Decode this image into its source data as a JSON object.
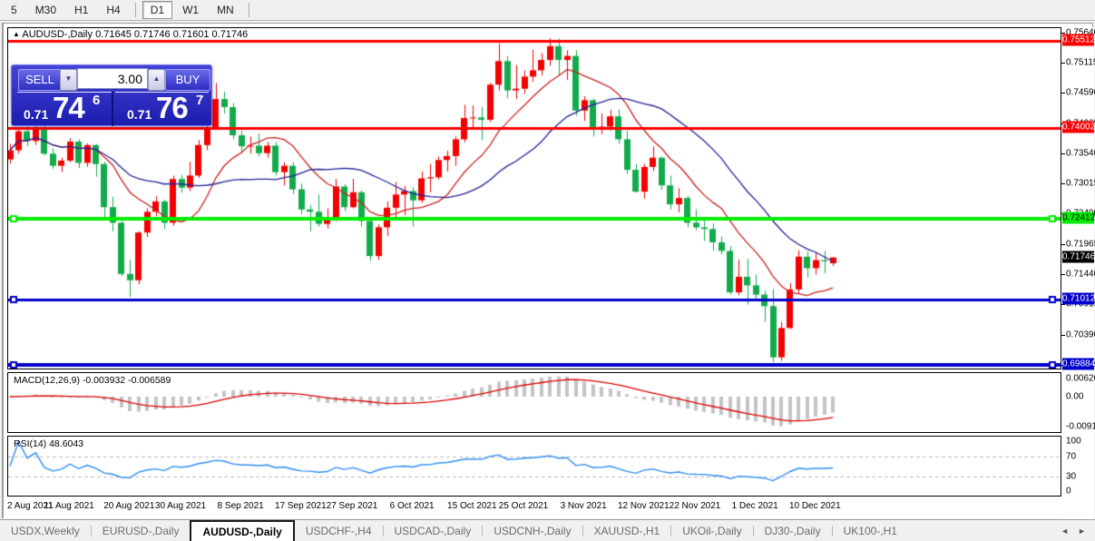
{
  "toolbar": {
    "timeframes": [
      {
        "label": "5"
      },
      {
        "label": "M30"
      },
      {
        "label": "H1"
      },
      {
        "label": "H4"
      },
      {
        "sep": true
      },
      {
        "label": "D1",
        "active": true
      },
      {
        "label": "W1"
      },
      {
        "label": "MN"
      },
      {
        "sep": true
      }
    ]
  },
  "chart": {
    "collapse_icon": "▲",
    "title_symbol": "AUDUSD-,Daily",
    "title_ohlc": "0.71645 0.71746 0.71601 0.71746"
  },
  "trade_panel": {
    "sell_label": "SELL",
    "buy_label": "BUY",
    "volume": "3.00",
    "spinner_down_icon": "▼",
    "spinner_up_icon": "▲",
    "sell_price": {
      "small": "0.71",
      "big": "74",
      "sup": "6"
    },
    "buy_price": {
      "small": "0.71",
      "big": "76",
      "sup": "7"
    }
  },
  "price_axis": {
    "ticks": [
      "0.75640",
      "0.75115",
      "0.74590",
      "0.74065",
      "0.73540",
      "0.73015",
      "0.72490",
      "0.71965",
      "0.71440",
      "0.70915",
      "0.70390",
      "0.69865"
    ],
    "range_top": 0.75733,
    "range_bottom": 0.69815
  },
  "levels": [
    {
      "price": 0.75512,
      "label": "0.75512",
      "color": "#FF0000",
      "text_color": "#FFFFFF",
      "width": 3,
      "handles": false
    },
    {
      "price": 0.74002,
      "label": "0.74002",
      "color": "#FF0000",
      "text_color": "#FFFFFF",
      "width": 3,
      "handles": false
    },
    {
      "price": 0.72412,
      "label": "0.72412",
      "color": "#00EE00",
      "text_color": "#000000",
      "width": 4,
      "handles": true
    },
    {
      "price": 0.71012,
      "label": "0.71012",
      "color": "#0000CC",
      "text_color": "#FFFFFF",
      "width": 3,
      "handles": true
    },
    {
      "price": 0.69884,
      "label": "0.69884",
      "color": "#0000CC",
      "text_color": "#FFFFFF",
      "width": 4,
      "handles": true
    }
  ],
  "current_price": {
    "value": 0.71746,
    "label": "0.71746",
    "bg": "#000000",
    "text_color": "#FFFFFF"
  },
  "macd": {
    "label": "MACD(12,26,9) -0.003932 -0.006589",
    "fast": 12,
    "slow": 26,
    "signal": 9,
    "axis": [
      "0.006201",
      "0.00",
      "-0.00919"
    ],
    "axis_values": [
      0.006201,
      0,
      -0.00919
    ],
    "range_top": 0.0068,
    "range_bottom": -0.0102,
    "bar_color": "#c4c4c4",
    "signal_color": "#e00000"
  },
  "rsi": {
    "label": "RSI(14) 48.6043",
    "period": 14,
    "axis": [
      "100",
      "70",
      "30",
      "0"
    ],
    "axis_values": [
      100,
      70,
      30,
      0
    ],
    "level_lines": [
      70,
      30
    ],
    "line_color": "#2f8df5",
    "grid_color": "#bbbbbb"
  },
  "chart_data": {
    "type": "candlestick",
    "symbol": "AUDUSD-",
    "timeframe": "Daily",
    "bull_color": "#f40000",
    "bear_color": "#12ab4b",
    "ma_fast": {
      "period": 10,
      "color": "#cc2222"
    },
    "ma_slow": {
      "period": 21,
      "color": "#22229c"
    },
    "ohlc": [
      [
        0.7345,
        0.7372,
        0.7338,
        0.7361
      ],
      [
        0.7361,
        0.7399,
        0.7355,
        0.7394
      ],
      [
        0.7394,
        0.7403,
        0.7368,
        0.7377
      ],
      [
        0.7377,
        0.7405,
        0.737,
        0.74
      ],
      [
        0.74,
        0.7406,
        0.7352,
        0.7355
      ],
      [
        0.7355,
        0.7364,
        0.7329,
        0.7334
      ],
      [
        0.7334,
        0.7348,
        0.7323,
        0.7343
      ],
      [
        0.7343,
        0.7382,
        0.734,
        0.7376
      ],
      [
        0.7376,
        0.738,
        0.733,
        0.7339
      ],
      [
        0.7339,
        0.7373,
        0.7332,
        0.737
      ],
      [
        0.737,
        0.7372,
        0.7315,
        0.7337
      ],
      [
        0.7337,
        0.7341,
        0.724,
        0.7262
      ],
      [
        0.7262,
        0.728,
        0.722,
        0.7235
      ],
      [
        0.7235,
        0.7238,
        0.7142,
        0.7146
      ],
      [
        0.7146,
        0.717,
        0.7106,
        0.7135
      ],
      [
        0.7135,
        0.722,
        0.7128,
        0.7218
      ],
      [
        0.7218,
        0.726,
        0.721,
        0.7254
      ],
      [
        0.7254,
        0.7281,
        0.7246,
        0.7272
      ],
      [
        0.7272,
        0.7275,
        0.7224,
        0.7235
      ],
      [
        0.7235,
        0.7317,
        0.723,
        0.7311
      ],
      [
        0.7311,
        0.7318,
        0.7287,
        0.7296
      ],
      [
        0.7296,
        0.7341,
        0.729,
        0.7317
      ],
      [
        0.7317,
        0.7379,
        0.7313,
        0.737
      ],
      [
        0.737,
        0.7408,
        0.7361,
        0.7401
      ],
      [
        0.7401,
        0.7478,
        0.7396,
        0.745
      ],
      [
        0.745,
        0.7463,
        0.7425,
        0.7436
      ],
      [
        0.7436,
        0.7443,
        0.738,
        0.7387
      ],
      [
        0.7387,
        0.7395,
        0.7355,
        0.7368
      ],
      [
        0.7368,
        0.7385,
        0.7355,
        0.7369
      ],
      [
        0.7369,
        0.739,
        0.735,
        0.7356
      ],
      [
        0.7356,
        0.7375,
        0.7348,
        0.7369
      ],
      [
        0.7369,
        0.7375,
        0.7318,
        0.7323
      ],
      [
        0.7323,
        0.734,
        0.73,
        0.7334
      ],
      [
        0.7334,
        0.734,
        0.7285,
        0.7293
      ],
      [
        0.7293,
        0.7303,
        0.725,
        0.7258
      ],
      [
        0.7258,
        0.7266,
        0.722,
        0.7254
      ],
      [
        0.7254,
        0.7284,
        0.7228,
        0.7233
      ],
      [
        0.7233,
        0.726,
        0.7225,
        0.7241
      ],
      [
        0.7241,
        0.7311,
        0.7238,
        0.7298
      ],
      [
        0.7298,
        0.7302,
        0.7255,
        0.7262
      ],
      [
        0.7262,
        0.7311,
        0.726,
        0.7288
      ],
      [
        0.7288,
        0.7291,
        0.7228,
        0.7238
      ],
      [
        0.7238,
        0.7242,
        0.7169,
        0.7177
      ],
      [
        0.7177,
        0.7232,
        0.717,
        0.7227
      ],
      [
        0.7227,
        0.7272,
        0.7212,
        0.7261
      ],
      [
        0.7261,
        0.7306,
        0.724,
        0.7284
      ],
      [
        0.7284,
        0.7299,
        0.7248,
        0.729
      ],
      [
        0.729,
        0.7296,
        0.7228,
        0.7274
      ],
      [
        0.7274,
        0.7324,
        0.727,
        0.7312
      ],
      [
        0.7312,
        0.7337,
        0.7288,
        0.7314
      ],
      [
        0.7314,
        0.735,
        0.731,
        0.7344
      ],
      [
        0.7344,
        0.736,
        0.7324,
        0.7351
      ],
      [
        0.7351,
        0.7385,
        0.7334,
        0.738
      ],
      [
        0.738,
        0.744,
        0.7375,
        0.7417
      ],
      [
        0.7417,
        0.7439,
        0.74,
        0.7418
      ],
      [
        0.7418,
        0.7436,
        0.7379,
        0.7414
      ],
      [
        0.7414,
        0.7478,
        0.741,
        0.7475
      ],
      [
        0.7475,
        0.7547,
        0.7465,
        0.7516
      ],
      [
        0.7516,
        0.7525,
        0.7452,
        0.7465
      ],
      [
        0.7465,
        0.7509,
        0.745,
        0.7468
      ],
      [
        0.7468,
        0.75,
        0.7459,
        0.7489
      ],
      [
        0.7489,
        0.7536,
        0.748,
        0.75
      ],
      [
        0.75,
        0.753,
        0.7491,
        0.7518
      ],
      [
        0.7518,
        0.7556,
        0.7508,
        0.7542
      ],
      [
        0.7542,
        0.7555,
        0.749,
        0.7518
      ],
      [
        0.7518,
        0.7535,
        0.7483,
        0.7525
      ],
      [
        0.7525,
        0.7535,
        0.7421,
        0.743
      ],
      [
        0.743,
        0.7455,
        0.7412,
        0.7448
      ],
      [
        0.7448,
        0.7451,
        0.7385,
        0.74
      ],
      [
        0.74,
        0.7425,
        0.7389,
        0.7402
      ],
      [
        0.7402,
        0.7431,
        0.7395,
        0.742
      ],
      [
        0.742,
        0.7432,
        0.7372,
        0.738
      ],
      [
        0.738,
        0.7395,
        0.732,
        0.7327
      ],
      [
        0.7327,
        0.7337,
        0.7287,
        0.7289
      ],
      [
        0.7289,
        0.7337,
        0.7277,
        0.7332
      ],
      [
        0.7332,
        0.7368,
        0.7325,
        0.7348
      ],
      [
        0.7348,
        0.735,
        0.7292,
        0.73
      ],
      [
        0.73,
        0.7317,
        0.7258,
        0.7267
      ],
      [
        0.7267,
        0.7295,
        0.7253,
        0.7278
      ],
      [
        0.7278,
        0.7282,
        0.7227,
        0.7235
      ],
      [
        0.7235,
        0.7258,
        0.7222,
        0.7227
      ],
      [
        0.7227,
        0.7245,
        0.7203,
        0.7224
      ],
      [
        0.7224,
        0.7234,
        0.7186,
        0.7201
      ],
      [
        0.7201,
        0.7211,
        0.718,
        0.7186
      ],
      [
        0.7186,
        0.7194,
        0.711,
        0.7114
      ],
      [
        0.7114,
        0.7171,
        0.7109,
        0.7141
      ],
      [
        0.7141,
        0.7172,
        0.7093,
        0.7126
      ],
      [
        0.7126,
        0.7145,
        0.7099,
        0.711
      ],
      [
        0.711,
        0.7117,
        0.7063,
        0.709
      ],
      [
        0.709,
        0.712,
        0.6993,
        0.7001
      ],
      [
        0.7001,
        0.7062,
        0.6995,
        0.7052
      ],
      [
        0.7052,
        0.713,
        0.705,
        0.7119
      ],
      [
        0.7119,
        0.7187,
        0.7113,
        0.7176
      ],
      [
        0.7176,
        0.7185,
        0.714,
        0.7156
      ],
      [
        0.7156,
        0.7184,
        0.7145,
        0.717
      ],
      [
        0.717,
        0.7186,
        0.7147,
        0.7168
      ],
      [
        0.71645,
        0.71746,
        0.71601,
        0.71746
      ]
    ],
    "date_labels": [
      {
        "text": "2 Aug 2021",
        "i": 0
      },
      {
        "text": "11 Aug 2021",
        "i": 7
      },
      {
        "text": "20 Aug 2021",
        "i": 14
      },
      {
        "text": "30 Aug 2021",
        "i": 20
      },
      {
        "text": "8 Sep 2021",
        "i": 27
      },
      {
        "text": "17 Sep 2021",
        "i": 34
      },
      {
        "text": "27 Sep 2021",
        "i": 40
      },
      {
        "text": "6 Oct 2021",
        "i": 47
      },
      {
        "text": "15 Oct 2021",
        "i": 54
      },
      {
        "text": "25 Oct 2021",
        "i": 60
      },
      {
        "text": "3 Nov 2021",
        "i": 67
      },
      {
        "text": "12 Nov 2021",
        "i": 74
      },
      {
        "text": "22 Nov 2021",
        "i": 80
      },
      {
        "text": "1 Dec 2021",
        "i": 87
      },
      {
        "text": "10 Dec 2021",
        "i": 94
      }
    ]
  },
  "tabs": {
    "items": [
      {
        "label": "USDX,Weekly"
      },
      {
        "label": "EURUSD-,Daily"
      },
      {
        "label": "AUDUSD-,Daily",
        "active": true
      },
      {
        "label": "USDCHF-,H4"
      },
      {
        "label": "USDCAD-,Daily"
      },
      {
        "label": "USDCNH-,Daily"
      },
      {
        "label": "XAUUSD-,H1"
      },
      {
        "label": "UKOil-,Daily"
      },
      {
        "label": "DJ30-,Daily"
      },
      {
        "label": "UK100-,H1"
      }
    ],
    "scroll_left_icon": "◄",
    "scroll_right_icon": "►"
  }
}
